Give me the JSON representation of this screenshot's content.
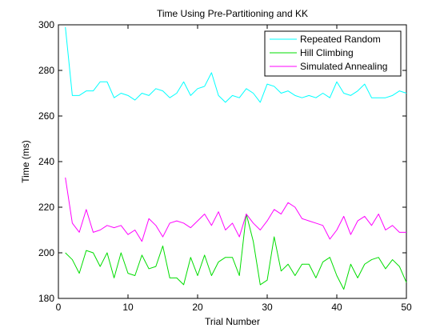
{
  "chart_data": {
    "type": "line",
    "title": "Time Using Pre-Partitioning and KK",
    "xlabel": "Trial Number",
    "ylabel": "Time (ms)",
    "xlim": [
      0,
      50
    ],
    "ylim": [
      180,
      300
    ],
    "xticks": [
      0,
      10,
      20,
      30,
      40,
      50
    ],
    "yticks": [
      180,
      200,
      220,
      240,
      260,
      280,
      300
    ],
    "grid": false,
    "legend_position": "top-right",
    "x": [
      1,
      2,
      3,
      4,
      5,
      6,
      7,
      8,
      9,
      10,
      11,
      12,
      13,
      14,
      15,
      16,
      17,
      18,
      19,
      20,
      21,
      22,
      23,
      24,
      25,
      26,
      27,
      28,
      29,
      30,
      31,
      32,
      33,
      34,
      35,
      36,
      37,
      38,
      39,
      40,
      41,
      42,
      43,
      44,
      45,
      46,
      47,
      48,
      49,
      50
    ],
    "series": [
      {
        "name": "Repeated Random",
        "color": "#00ffff",
        "values": [
          299,
          269,
          269,
          271,
          271,
          275,
          275,
          268,
          270,
          269,
          267,
          270,
          269,
          272,
          271,
          268,
          270,
          275,
          269,
          272,
          273,
          279,
          269,
          266,
          269,
          268,
          272,
          270,
          266,
          274,
          273,
          270,
          271,
          269,
          268,
          269,
          268,
          270,
          268,
          275,
          270,
          269,
          271,
          274,
          268,
          268,
          268,
          269,
          271,
          270
        ]
      },
      {
        "name": "Hill Climbing",
        "color": "#00dd00",
        "values": [
          200,
          197,
          191,
          201,
          200,
          194,
          200,
          189,
          200,
          191,
          190,
          199,
          193,
          194,
          203,
          189,
          189,
          186,
          198,
          190,
          199,
          190,
          196,
          198,
          198,
          190,
          217,
          205,
          186,
          188,
          207,
          192,
          195,
          190,
          195,
          195,
          189,
          196,
          198,
          190,
          184,
          195,
          189,
          195,
          197,
          198,
          193,
          197,
          194,
          187
        ]
      },
      {
        "name": "Simulated Annealing",
        "color": "#ff00ff",
        "values": [
          233,
          213,
          209,
          219,
          209,
          210,
          212,
          211,
          212,
          208,
          210,
          205,
          215,
          212,
          207,
          213,
          214,
          213,
          211,
          214,
          217,
          212,
          218,
          210,
          213,
          207,
          217,
          213,
          210,
          214,
          219,
          217,
          222,
          220,
          215,
          214,
          213,
          212,
          206,
          210,
          216,
          208,
          214,
          216,
          212,
          217,
          210,
          212,
          209,
          209
        ]
      }
    ]
  }
}
